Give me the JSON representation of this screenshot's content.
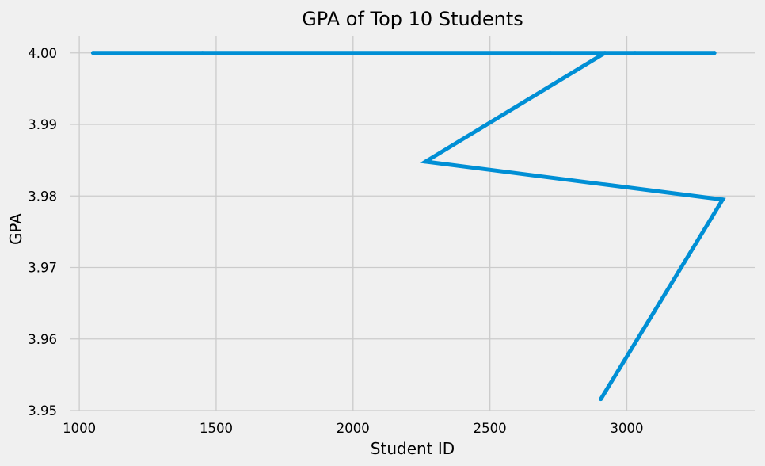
{
  "chart_data": {
    "type": "line",
    "title": "GPA of Top 10 Students",
    "xlabel": "Student ID",
    "ylabel": "GPA",
    "xlim": [
      965,
      3470
    ],
    "ylim": [
      3.95,
      4.0023
    ],
    "x_ticks": [
      1000,
      1500,
      2000,
      2500,
      3000
    ],
    "x_tick_labels": [
      "1000",
      "1500",
      "2000",
      "2500",
      "3000"
    ],
    "y_ticks": [
      3.95,
      3.96,
      3.97,
      3.98,
      3.99,
      4.0
    ],
    "y_tick_labels": [
      "3.95",
      "3.96",
      "3.97",
      "3.98",
      "3.99",
      "4.00"
    ],
    "grid": true,
    "legend": false,
    "series": [
      {
        "color": "#008fd5",
        "x": [
          3320,
          1050,
          1450,
          2720,
          3030,
          2920,
          2265,
          3350,
          2905
        ],
        "y": [
          4.0,
          4.0,
          4.0,
          4.0,
          4.0,
          4.0,
          3.9848,
          3.9795,
          3.9516
        ]
      }
    ]
  }
}
